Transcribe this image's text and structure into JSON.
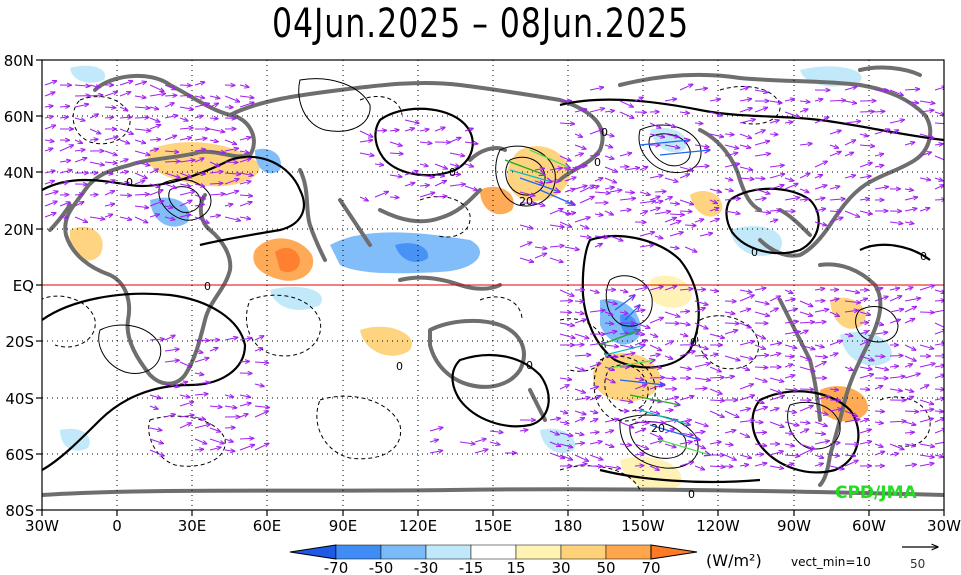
{
  "title": "04Jun.2025 – 08Jun.2025",
  "credit": "CPD/JMA",
  "credit_color": "#22dd22",
  "lat_labels": [
    "80N",
    "60N",
    "40N",
    "20N",
    "EQ",
    "20S",
    "40S",
    "60S",
    "80S"
  ],
  "lon_labels": [
    "30W",
    "0",
    "30E",
    "60E",
    "90E",
    "120E",
    "150E",
    "180",
    "150W",
    "120W",
    "90W",
    "60W",
    "30W"
  ],
  "contour_labels": [
    "0",
    "0",
    "0",
    "0",
    "0",
    "0",
    "0",
    "0",
    "0",
    "20",
    "20",
    "0",
    "0"
  ],
  "colorbar": {
    "ticks": [
      "-70",
      "-50",
      "-30",
      "-15",
      "15",
      "30",
      "50",
      "70"
    ],
    "colors": [
      "#1f5ae6",
      "#3f8cf5",
      "#7bbaf8",
      "#bfe8fa",
      "#ffffff",
      "#fff2b3",
      "#ffd27a",
      "#ffa64d",
      "#ff7a26"
    ],
    "units": "(W/m²)",
    "vect_label": "vect_min=10"
  },
  "reference_vector": {
    "value": "50"
  },
  "colors": {
    "coast": "#6e6e6e",
    "vector": "#a020f0",
    "equator": "#e60000",
    "contour": "#000000"
  }
}
